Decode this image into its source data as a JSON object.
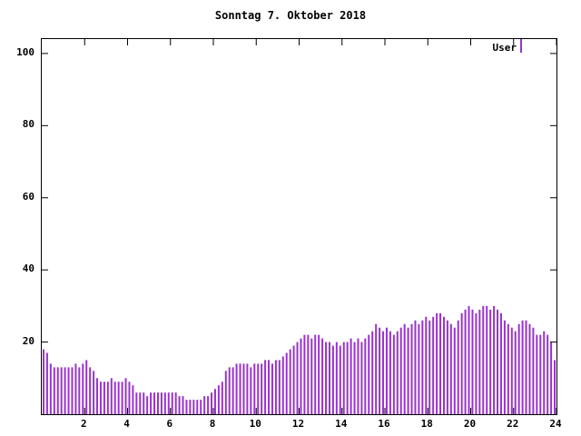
{
  "title": "Sonntag 7. Oktober 2018",
  "legend": {
    "label": "User",
    "color": "#9933cc"
  },
  "chart_data": {
    "type": "bar",
    "title": "Sonntag 7. Oktober 2018",
    "series_name": "User",
    "bar_color": "#9933cc",
    "xlabel": "",
    "ylabel": "",
    "xlim": [
      0,
      24
    ],
    "ylim": [
      0,
      104
    ],
    "x_ticks": [
      2,
      4,
      6,
      8,
      10,
      12,
      14,
      16,
      18,
      20,
      22,
      24
    ],
    "y_ticks": [
      20,
      40,
      60,
      80,
      100
    ],
    "x_start_hour": 0,
    "x_step_minutes": 10,
    "values": [
      18,
      17,
      14,
      13,
      13,
      13,
      13,
      13,
      13,
      14,
      13,
      14,
      15,
      13,
      12,
      10,
      9,
      9,
      9,
      10,
      9,
      9,
      9,
      10,
      9,
      8,
      6,
      6,
      6,
      5,
      6,
      6,
      6,
      6,
      6,
      6,
      6,
      6,
      5,
      5,
      4,
      4,
      4,
      4,
      4,
      5,
      5,
      6,
      7,
      8,
      9,
      12,
      13,
      13,
      14,
      14,
      14,
      14,
      13,
      14,
      14,
      14,
      15,
      15,
      14,
      15,
      15,
      16,
      17,
      18,
      19,
      20,
      21,
      22,
      22,
      21,
      22,
      22,
      21,
      20,
      20,
      19,
      20,
      19,
      20,
      20,
      21,
      20,
      21,
      20,
      21,
      22,
      23,
      25,
      24,
      23,
      24,
      23,
      22,
      23,
      24,
      25,
      24,
      25,
      26,
      25,
      26,
      27,
      26,
      27,
      28,
      28,
      27,
      26,
      25,
      24,
      26,
      28,
      29,
      30,
      29,
      28,
      29,
      30,
      30,
      29,
      30,
      29,
      28,
      26,
      25,
      24,
      23,
      25,
      26,
      26,
      25,
      24,
      22,
      22,
      23,
      22,
      20,
      15
    ]
  }
}
